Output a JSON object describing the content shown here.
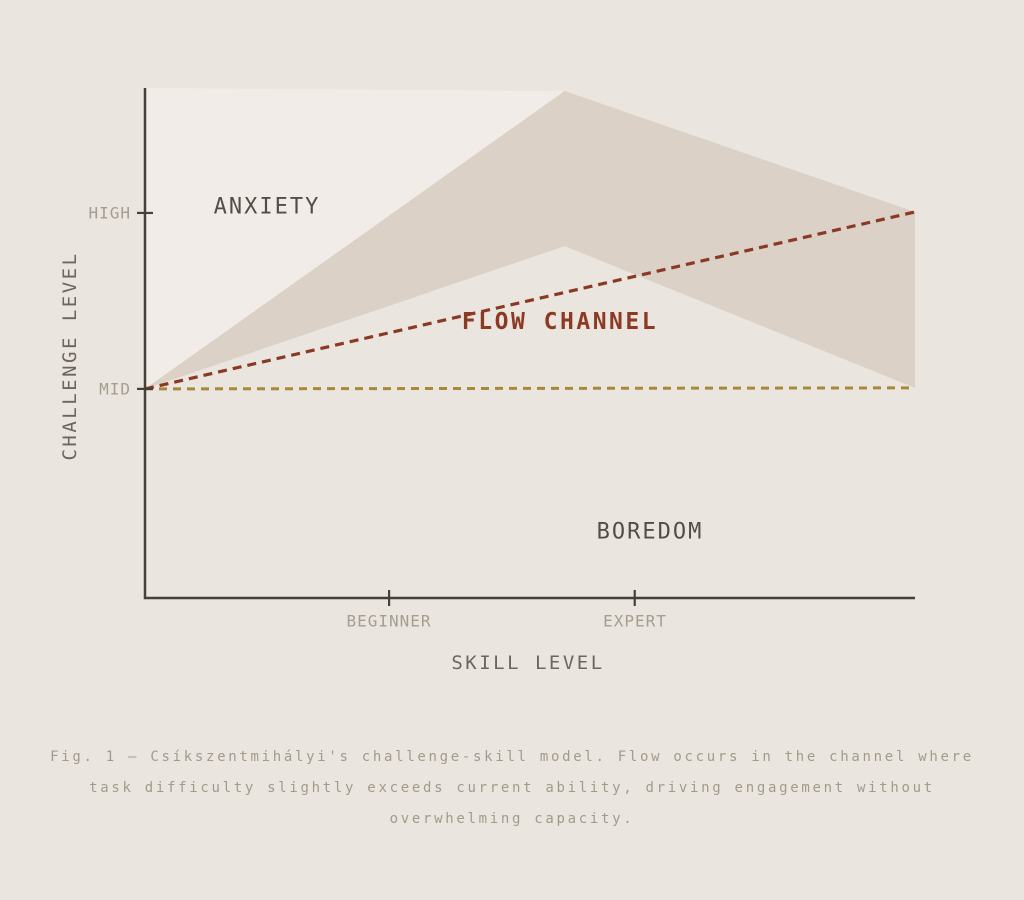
{
  "colors": {
    "page_bg": "#eae5de",
    "anxiety_fill": "#f1ece7",
    "band_fill": "#dbd1c6",
    "axis": "#45403a",
    "tick_label": "#a69d90",
    "axis_title": "#6e665e",
    "region_label": "#544d46",
    "flow_accent": "#8c3a23",
    "mid_accent": "#a58a3a",
    "caption": "#a49a8c"
  },
  "chart_data": {
    "type": "area",
    "title": "",
    "xlabel": "SKILL LEVEL",
    "ylabel": "CHALLENGE LEVEL",
    "axis_range_note": "normalized 0-1 on both axes, no numeric scale shown",
    "grid": false,
    "legend": false,
    "x_ticks": [
      {
        "label": "BEGINNER",
        "x": 0.317
      },
      {
        "label": "EXPERT",
        "x": 0.636
      }
    ],
    "y_ticks": [
      {
        "label": "HIGH",
        "y": 0.755
      },
      {
        "label": "MID",
        "y": 0.41
      }
    ],
    "anxiety_fill": {
      "points": [
        [
          0,
          1.0
        ],
        [
          0.545,
          0.994
        ],
        [
          0,
          0.41
        ]
      ]
    },
    "flow_band": {
      "points": [
        [
          0,
          0.41
        ],
        [
          0.545,
          0.994
        ],
        [
          1.0,
          0.757
        ],
        [
          1.0,
          0.412
        ],
        [
          0.545,
          0.69
        ]
      ]
    },
    "flow_line": {
      "from": [
        0,
        0.41
      ],
      "to": [
        1.0,
        0.757
      ],
      "style": "dashed",
      "color": "#8a3a22"
    },
    "mid_line": {
      "from": [
        0,
        0.41
      ],
      "to": [
        1.0,
        0.412
      ],
      "style": "dashed",
      "color": "#a58a3a"
    },
    "region_labels": [
      {
        "text": "ANXIETY",
        "x": 0.158,
        "y": 0.767,
        "color": "#544d46"
      },
      {
        "text": "FLOW CHANNEL",
        "x": 0.539,
        "y": 0.541,
        "color": "#8c3a23"
      },
      {
        "text": "BOREDOM",
        "x": 0.656,
        "y": 0.129,
        "color": "#544d46"
      }
    ]
  },
  "caption": {
    "lines": [
      "Fig. 1 — Csíkszentmihályi's challenge-skill model. Flow occurs in the channel where",
      "task difficulty slightly exceeds current ability, driving engagement without",
      "overwhelming capacity."
    ]
  }
}
